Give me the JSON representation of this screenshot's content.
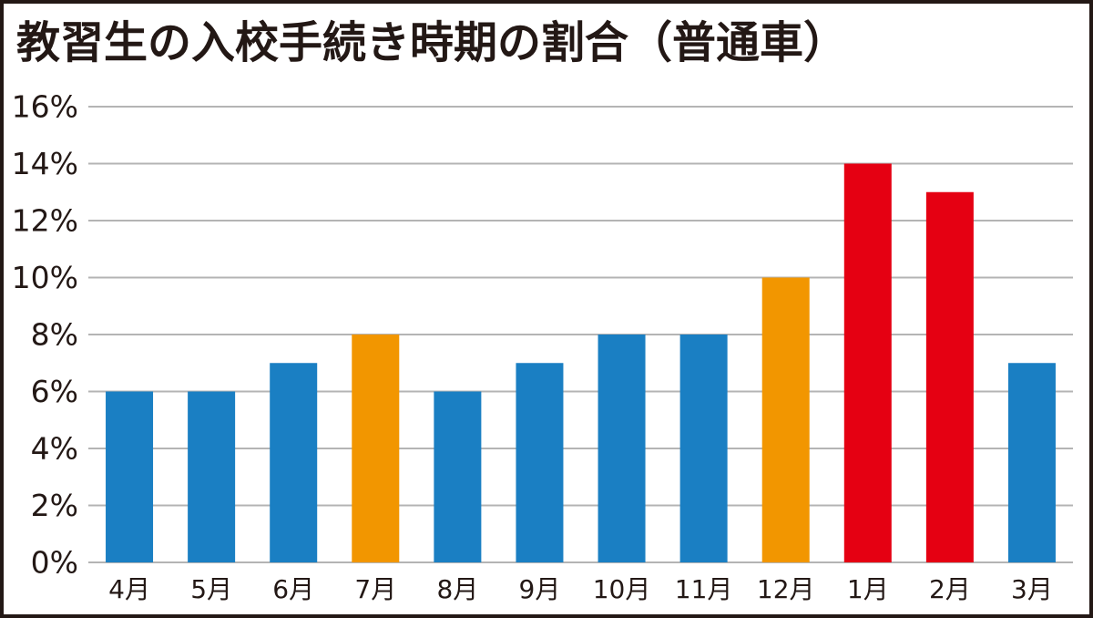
{
  "chart_data": {
    "type": "bar",
    "title": "教習生の入校手続き時期の割合（普通車）",
    "categories": [
      "4月",
      "5月",
      "6月",
      "7月",
      "8月",
      "9月",
      "10月",
      "11月",
      "12月",
      "1月",
      "2月",
      "3月"
    ],
    "values": [
      6,
      6,
      7,
      8,
      6,
      7,
      8,
      8,
      10,
      14,
      13,
      7
    ],
    "colors": [
      "#1a7fc3",
      "#1a7fc3",
      "#1a7fc3",
      "#f29600",
      "#1a7fc3",
      "#1a7fc3",
      "#1a7fc3",
      "#1a7fc3",
      "#f29600",
      "#e50012",
      "#e50012",
      "#1a7fc3"
    ],
    "ylim": [
      0,
      16
    ],
    "yticks": [
      {
        "value": 0,
        "label": "0%"
      },
      {
        "value": 2,
        "label": "2%"
      },
      {
        "value": 4,
        "label": "4%"
      },
      {
        "value": 6,
        "label": "6%"
      },
      {
        "value": 8,
        "label": "8%"
      },
      {
        "value": 10,
        "label": "10%"
      },
      {
        "value": 12,
        "label": "12%"
      },
      {
        "value": 14,
        "label": "14%"
      },
      {
        "value": 16,
        "label": "16%"
      }
    ],
    "grid": true
  }
}
